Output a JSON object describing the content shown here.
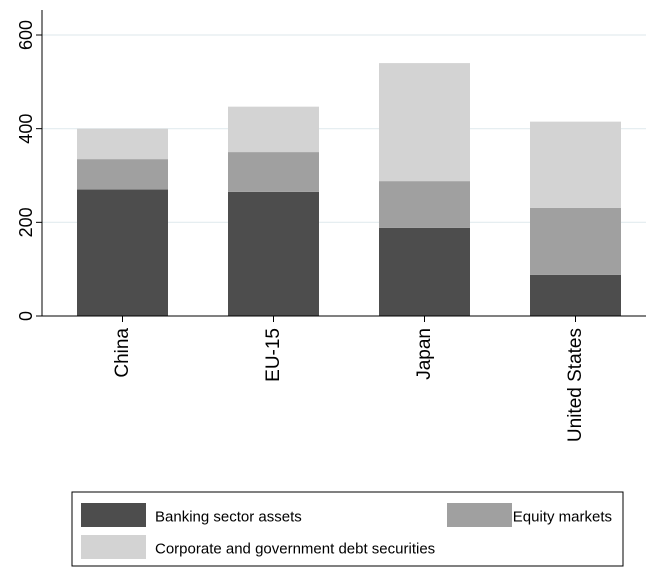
{
  "chart_data": {
    "type": "bar",
    "stacked": true,
    "categories": [
      "China",
      "EU-15",
      "Japan",
      "United States"
    ],
    "series": [
      {
        "name": "Banking sector assets",
        "values": [
          270,
          265,
          188,
          88
        ],
        "color": "#4d4d4d"
      },
      {
        "name": "Equity markets",
        "values": [
          65,
          85,
          100,
          143
        ],
        "color": "#a0a0a0"
      },
      {
        "name": "Corporate and government debt securities",
        "values": [
          65,
          97,
          252,
          184
        ],
        "color": "#d3d3d3"
      }
    ],
    "ylim": [
      0,
      600
    ],
    "yticks": [
      "0",
      "200",
      "400",
      "600"
    ],
    "ytick_values": [
      0,
      200,
      400,
      600
    ],
    "grid": true,
    "legend_position": "bottom",
    "title": "",
    "xlabel": "",
    "ylabel": ""
  }
}
